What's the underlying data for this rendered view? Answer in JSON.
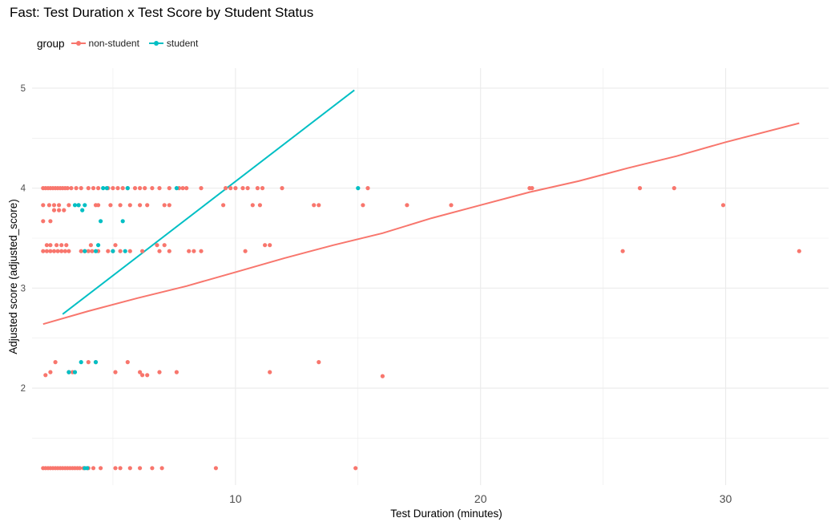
{
  "chart_data": {
    "type": "scatter",
    "title": "Fast: Test Duration x Test Score by Student Status",
    "xlabel": "Test Duration (minutes)",
    "ylabel": "Adjusted score (adjusted_score)",
    "xlim": [
      1.7,
      34.2
    ],
    "ylim": [
      1.03,
      5.2
    ],
    "x_ticks": [
      10,
      20,
      30
    ],
    "y_ticks": [
      2,
      3,
      4,
      5
    ],
    "grid": true,
    "legend": {
      "title": "group",
      "position": "top-left",
      "entries": [
        "non-student",
        "student"
      ]
    },
    "colors": {
      "non-student": "#F8766D",
      "student": "#00BFC4",
      "grid": "#EBEBEB"
    },
    "series": [
      {
        "name": "non-student",
        "color": "#F8766D",
        "points": [
          [
            2.15,
            4.0
          ],
          [
            2.25,
            4.0
          ],
          [
            2.35,
            4.0
          ],
          [
            2.45,
            4.0
          ],
          [
            2.55,
            4.0
          ],
          [
            2.65,
            4.0
          ],
          [
            2.75,
            4.0
          ],
          [
            2.85,
            4.0
          ],
          [
            2.95,
            4.0
          ],
          [
            3.05,
            4.0
          ],
          [
            3.15,
            4.0
          ],
          [
            3.3,
            4.0
          ],
          [
            3.5,
            4.0
          ],
          [
            3.7,
            4.0
          ],
          [
            4.0,
            4.0
          ],
          [
            4.2,
            4.0
          ],
          [
            4.4,
            4.0
          ],
          [
            4.8,
            4.0
          ],
          [
            5.0,
            4.0
          ],
          [
            5.2,
            4.0
          ],
          [
            5.4,
            4.0
          ],
          [
            5.6,
            4.0
          ],
          [
            5.9,
            4.0
          ],
          [
            6.1,
            4.0
          ],
          [
            6.3,
            4.0
          ],
          [
            6.6,
            4.0
          ],
          [
            6.9,
            4.0
          ],
          [
            7.3,
            4.0
          ],
          [
            7.7,
            4.0
          ],
          [
            7.85,
            4.0
          ],
          [
            8.0,
            4.0
          ],
          [
            8.6,
            4.0
          ],
          [
            9.6,
            4.0
          ],
          [
            9.8,
            4.0
          ],
          [
            10.0,
            4.0
          ],
          [
            10.3,
            4.0
          ],
          [
            10.5,
            4.0
          ],
          [
            10.9,
            4.0
          ],
          [
            11.1,
            4.0
          ],
          [
            11.9,
            4.0
          ],
          [
            15.4,
            4.0
          ],
          [
            22.0,
            4.0
          ],
          [
            22.1,
            4.0
          ],
          [
            26.5,
            4.0
          ],
          [
            27.9,
            4.0
          ],
          [
            2.15,
            3.83
          ],
          [
            2.4,
            3.83
          ],
          [
            2.6,
            3.83
          ],
          [
            2.8,
            3.83
          ],
          [
            3.2,
            3.83
          ],
          [
            3.6,
            3.83
          ],
          [
            4.3,
            3.83
          ],
          [
            4.4,
            3.83
          ],
          [
            4.9,
            3.83
          ],
          [
            5.3,
            3.83
          ],
          [
            5.7,
            3.83
          ],
          [
            6.1,
            3.83
          ],
          [
            6.4,
            3.83
          ],
          [
            7.1,
            3.83
          ],
          [
            7.3,
            3.83
          ],
          [
            9.5,
            3.83
          ],
          [
            10.7,
            3.83
          ],
          [
            11.0,
            3.83
          ],
          [
            13.2,
            3.83
          ],
          [
            13.4,
            3.83
          ],
          [
            15.2,
            3.83
          ],
          [
            17.0,
            3.83
          ],
          [
            18.8,
            3.83
          ],
          [
            29.9,
            3.83
          ],
          [
            2.6,
            3.78
          ],
          [
            2.8,
            3.78
          ],
          [
            3.0,
            3.78
          ],
          [
            2.15,
            3.67
          ],
          [
            2.45,
            3.67
          ],
          [
            2.3,
            3.43
          ],
          [
            2.45,
            3.43
          ],
          [
            2.7,
            3.43
          ],
          [
            2.9,
            3.43
          ],
          [
            3.1,
            3.43
          ],
          [
            4.1,
            3.43
          ],
          [
            5.1,
            3.43
          ],
          [
            6.8,
            3.43
          ],
          [
            7.1,
            3.43
          ],
          [
            11.2,
            3.43
          ],
          [
            11.4,
            3.43
          ],
          [
            2.15,
            3.37
          ],
          [
            2.3,
            3.37
          ],
          [
            2.45,
            3.37
          ],
          [
            2.6,
            3.37
          ],
          [
            2.75,
            3.37
          ],
          [
            2.9,
            3.37
          ],
          [
            3.05,
            3.37
          ],
          [
            3.2,
            3.37
          ],
          [
            3.7,
            3.37
          ],
          [
            3.85,
            3.37
          ],
          [
            4.0,
            3.37
          ],
          [
            4.15,
            3.37
          ],
          [
            4.4,
            3.37
          ],
          [
            4.8,
            3.37
          ],
          [
            5.0,
            3.37
          ],
          [
            5.3,
            3.37
          ],
          [
            5.7,
            3.37
          ],
          [
            6.2,
            3.37
          ],
          [
            6.9,
            3.37
          ],
          [
            7.3,
            3.37
          ],
          [
            8.1,
            3.37
          ],
          [
            8.3,
            3.37
          ],
          [
            8.6,
            3.37
          ],
          [
            10.4,
            3.37
          ],
          [
            25.8,
            3.37
          ],
          [
            33.0,
            3.37
          ],
          [
            2.25,
            2.13
          ],
          [
            2.45,
            2.16
          ],
          [
            2.65,
            2.26
          ],
          [
            3.2,
            2.16
          ],
          [
            3.35,
            2.16
          ],
          [
            4.0,
            2.26
          ],
          [
            4.3,
            2.26
          ],
          [
            5.1,
            2.16
          ],
          [
            5.6,
            2.26
          ],
          [
            6.1,
            2.16
          ],
          [
            6.2,
            2.13
          ],
          [
            6.4,
            2.13
          ],
          [
            6.9,
            2.16
          ],
          [
            7.6,
            2.16
          ],
          [
            11.4,
            2.16
          ],
          [
            13.4,
            2.26
          ],
          [
            16.0,
            2.12
          ],
          [
            2.15,
            1.2
          ],
          [
            2.25,
            1.2
          ],
          [
            2.35,
            1.2
          ],
          [
            2.45,
            1.2
          ],
          [
            2.55,
            1.2
          ],
          [
            2.65,
            1.2
          ],
          [
            2.75,
            1.2
          ],
          [
            2.85,
            1.2
          ],
          [
            2.95,
            1.2
          ],
          [
            3.05,
            1.2
          ],
          [
            3.15,
            1.2
          ],
          [
            3.25,
            1.2
          ],
          [
            3.35,
            1.2
          ],
          [
            3.45,
            1.2
          ],
          [
            3.55,
            1.2
          ],
          [
            3.65,
            1.2
          ],
          [
            3.8,
            1.2
          ],
          [
            4.0,
            1.2
          ],
          [
            4.2,
            1.2
          ],
          [
            4.5,
            1.2
          ],
          [
            5.1,
            1.2
          ],
          [
            5.3,
            1.2
          ],
          [
            5.7,
            1.2
          ],
          [
            6.1,
            1.2
          ],
          [
            6.6,
            1.2
          ],
          [
            7.0,
            1.2
          ],
          [
            9.2,
            1.2
          ],
          [
            14.9,
            1.2
          ]
        ],
        "trend": [
          [
            2.15,
            2.64
          ],
          [
            4.0,
            2.77
          ],
          [
            6.0,
            2.9
          ],
          [
            8.0,
            3.02
          ],
          [
            10.0,
            3.16
          ],
          [
            12.0,
            3.3
          ],
          [
            14.0,
            3.43
          ],
          [
            16.0,
            3.55
          ],
          [
            18.0,
            3.7
          ],
          [
            20.0,
            3.83
          ],
          [
            22.0,
            3.96
          ],
          [
            24.0,
            4.07
          ],
          [
            26.0,
            4.2
          ],
          [
            28.0,
            4.32
          ],
          [
            30.0,
            4.46
          ],
          [
            33.0,
            4.65
          ]
        ]
      },
      {
        "name": "student",
        "color": "#00BFC4",
        "points": [
          [
            4.6,
            4.0
          ],
          [
            4.75,
            4.0
          ],
          [
            5.6,
            4.0
          ],
          [
            7.6,
            4.0
          ],
          [
            15.0,
            4.0
          ],
          [
            3.45,
            3.83
          ],
          [
            3.6,
            3.83
          ],
          [
            3.85,
            3.83
          ],
          [
            3.75,
            3.78
          ],
          [
            4.5,
            3.67
          ],
          [
            5.4,
            3.67
          ],
          [
            4.4,
            3.43
          ],
          [
            3.85,
            3.37
          ],
          [
            4.3,
            3.37
          ],
          [
            5.0,
            3.37
          ],
          [
            5.5,
            3.37
          ],
          [
            3.2,
            2.16
          ],
          [
            3.45,
            2.16
          ],
          [
            3.7,
            2.26
          ],
          [
            4.3,
            2.26
          ],
          [
            3.85,
            1.2
          ],
          [
            3.95,
            1.2
          ]
        ],
        "trend": [
          [
            2.95,
            2.74
          ],
          [
            14.85,
            4.98
          ]
        ]
      }
    ]
  }
}
